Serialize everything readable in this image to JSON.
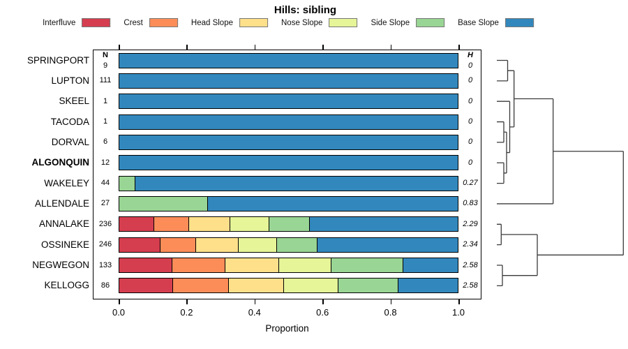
{
  "title": "Hills: sibling",
  "legend": [
    {
      "label": "Interfluve",
      "color": "#D53E4F"
    },
    {
      "label": "Crest",
      "color": "#FC8D59"
    },
    {
      "label": "Head Slope",
      "color": "#FEE08B"
    },
    {
      "label": "Nose Slope",
      "color": "#E6F598"
    },
    {
      "label": "Side Slope",
      "color": "#99D594"
    },
    {
      "label": "Base Slope",
      "color": "#3288BD"
    }
  ],
  "columns": {
    "n_header": "N",
    "h_header": "H"
  },
  "axis": {
    "label": "Proportion",
    "tick_labels": [
      "0.0",
      "0.2",
      "0.4",
      "0.6",
      "0.8",
      "1.0"
    ],
    "tick_values": [
      0,
      0.2,
      0.4,
      0.6,
      0.8,
      1.0
    ]
  },
  "chart_data": {
    "type": "bar",
    "stacked": true,
    "orientation": "horizontal",
    "title": "Hills: sibling",
    "xlabel": "Proportion",
    "xlim": [
      0,
      1
    ],
    "grid": false,
    "categories": [
      "Interfluve",
      "Crest",
      "Head Slope",
      "Nose Slope",
      "Side Slope",
      "Base Slope"
    ],
    "rows": [
      {
        "label": "SPRINGPORT",
        "n": 9,
        "h": "0",
        "bold": false,
        "values": [
          0,
          0,
          0,
          0,
          0,
          1.0
        ]
      },
      {
        "label": "LUPTON",
        "n": 111,
        "h": "0",
        "bold": false,
        "values": [
          0,
          0,
          0,
          0,
          0,
          1.0
        ]
      },
      {
        "label": "SKEEL",
        "n": 1,
        "h": "0",
        "bold": false,
        "values": [
          0,
          0,
          0,
          0,
          0,
          1.0
        ]
      },
      {
        "label": "TACODA",
        "n": 1,
        "h": "0",
        "bold": false,
        "values": [
          0,
          0,
          0,
          0,
          0,
          1.0
        ]
      },
      {
        "label": "DORVAL",
        "n": 6,
        "h": "0",
        "bold": false,
        "values": [
          0,
          0,
          0,
          0,
          0,
          1.0
        ]
      },
      {
        "label": "ALGONQUIN",
        "n": 12,
        "h": "0",
        "bold": true,
        "values": [
          0,
          0,
          0,
          0,
          0,
          1.0
        ]
      },
      {
        "label": "WAKELEY",
        "n": 44,
        "h": "0.27",
        "bold": false,
        "values": [
          0,
          0,
          0,
          0,
          0.045,
          0.955
        ]
      },
      {
        "label": "ALLENDALE",
        "n": 27,
        "h": "0.83",
        "bold": false,
        "values": [
          0,
          0,
          0,
          0,
          0.26,
          0.74
        ]
      },
      {
        "label": "ANNALAKE",
        "n": 236,
        "h": "2.29",
        "bold": false,
        "values": [
          0.103,
          0.102,
          0.12,
          0.114,
          0.119,
          0.442
        ]
      },
      {
        "label": "OSSINEKE",
        "n": 246,
        "h": "2.34",
        "bold": false,
        "values": [
          0.12,
          0.106,
          0.123,
          0.113,
          0.12,
          0.418
        ]
      },
      {
        "label": "NEGWEGON",
        "n": 133,
        "h": "2.58",
        "bold": false,
        "values": [
          0.156,
          0.157,
          0.158,
          0.155,
          0.212,
          0.162
        ]
      },
      {
        "label": "KELLOGG",
        "n": 86,
        "h": "2.58",
        "bold": false,
        "values": [
          0.159,
          0.164,
          0.163,
          0.159,
          0.178,
          0.177
        ]
      }
    ],
    "dendrogram": {
      "h": 1.0,
      "children": [
        {
          "h": 0.445,
          "children": [
            {
              "h": 0.136,
              "children": [
                {
                  "h": 0.0855,
                  "children": [
                    {
                      "leaf": "SPRINGPORT"
                    },
                    {
                      "leaf": "LUPTON"
                    }
                  ]
                },
                {
                  "h": 0.102,
                  "children": [
                    {
                      "leaf": "SKEEL"
                    },
                    {
                      "h": 0.0772,
                      "children": [
                        {
                          "h": 0.0552,
                          "children": [
                            {
                              "leaf": "TACODA"
                            },
                            {
                              "leaf": "DORVAL"
                            }
                          ]
                        },
                        {
                          "h": 0.0552,
                          "children": [
                            {
                              "leaf": "ALGONQUIN"
                            },
                            {
                              "leaf": "WAKELEY"
                            }
                          ]
                        }
                      ]
                    }
                  ]
                }
              ]
            },
            {
              "leaf": "ALLENDALE"
            }
          ]
        },
        {
          "h": 0.32,
          "children": [
            {
              "h": 0.0347,
              "children": [
                {
                  "leaf": "ANNALAKE"
                },
                {
                  "leaf": "OSSINEKE"
                }
              ]
            },
            {
              "h": 0.0441,
              "children": [
                {
                  "leaf": "NEGWEGON"
                },
                {
                  "leaf": "KELLOGG"
                }
              ]
            }
          ]
        }
      ]
    }
  }
}
